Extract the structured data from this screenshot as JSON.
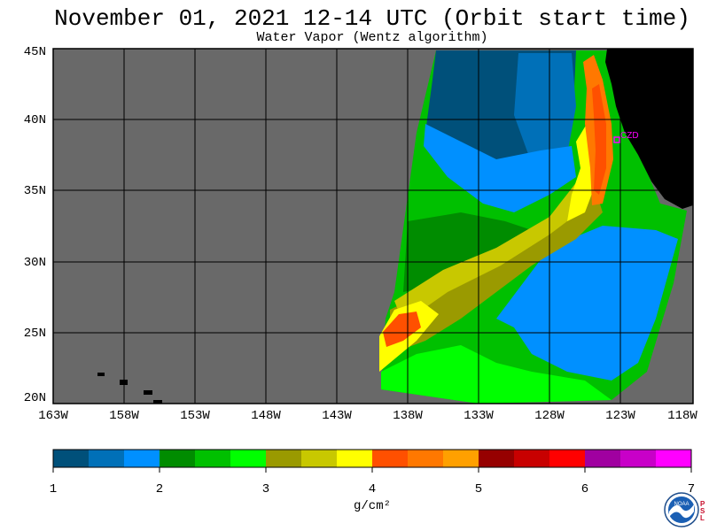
{
  "header": {
    "title": "November 01, 2021  12-14 UTC  (Orbit start time)",
    "subtitle": "Water Vapor (Wentz algorithm)"
  },
  "map": {
    "latitude_labels": [
      "45N",
      "40N",
      "35N",
      "30N",
      "25N",
      "20N"
    ],
    "longitude_labels": [
      "163W",
      "158W",
      "153W",
      "148W",
      "143W",
      "138W",
      "133W",
      "128W",
      "123W",
      "118W"
    ],
    "station_label": "CZD",
    "colors": {
      "no_data": "#696969",
      "land": "#000000",
      "grid": "#000000",
      "station": "#ff00ff"
    }
  },
  "colorbar": {
    "ticks": [
      "1",
      "2",
      "3",
      "4",
      "5",
      "6",
      "7"
    ],
    "units": "g/cm²",
    "colors": [
      "#00507a",
      "#0070b8",
      "#0090ff",
      "#008c00",
      "#00c000",
      "#00ff00",
      "#9a9a00",
      "#c8c800",
      "#ffff00",
      "#ff5000",
      "#ff7800",
      "#ffa000",
      "#960000",
      "#c80000",
      "#ff0000",
      "#a000a0",
      "#c800c8",
      "#ff00ff"
    ]
  },
  "logo": {
    "name": "NOAA",
    "side_letters": [
      "P",
      "S",
      "L"
    ]
  }
}
